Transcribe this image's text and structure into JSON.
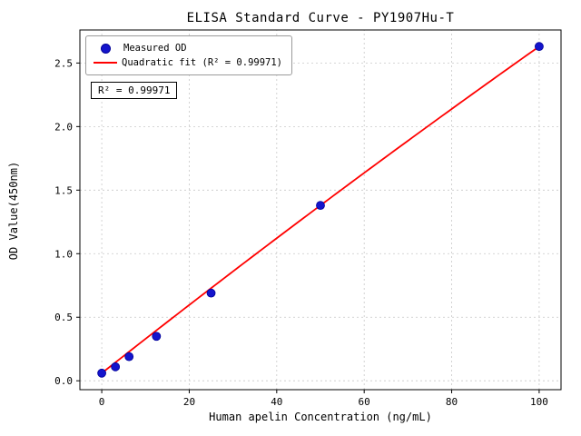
{
  "chart_data": {
    "type": "scatter",
    "title": "ELISA Standard Curve - PY1907Hu-T",
    "xlabel": "Human apelin Concentration (ng/mL)",
    "ylabel": "OD Value(450nm)",
    "xlim": [
      -5,
      105
    ],
    "ylim": [
      -0.07,
      2.76
    ],
    "x_ticks": [
      0,
      20,
      40,
      60,
      80,
      100
    ],
    "y_ticks": [
      0.0,
      0.5,
      1.0,
      1.5,
      2.0,
      2.5
    ],
    "grid": true,
    "grid_style": "dashed",
    "legend_position": "top-left",
    "legend_entries": [
      "Measured OD",
      "Quadratic fit (R² = 0.99971)"
    ],
    "annotation": "R² = 0.99971",
    "colors": {
      "marker_fill": "#1414cc",
      "marker_edge": "#000099",
      "fit_line": "#ff0000",
      "grid": "#c8c8c8",
      "frame": "#000000"
    },
    "series": [
      {
        "name": "Measured OD",
        "type": "scatter",
        "color": "#1414cc",
        "x": [
          0,
          3.125,
          6.25,
          12.5,
          25,
          50,
          100
        ],
        "y": [
          0.06,
          0.11,
          0.19,
          0.35,
          0.69,
          1.38,
          2.63
        ]
      },
      {
        "name": "Quadratic fit",
        "type": "line",
        "color": "#ff0000",
        "r_squared": 0.99971,
        "fit_coeffs": {
          "a": -1.4e-05,
          "b": 0.0271,
          "c": 0.06
        },
        "x_range": [
          0,
          100
        ]
      }
    ]
  }
}
